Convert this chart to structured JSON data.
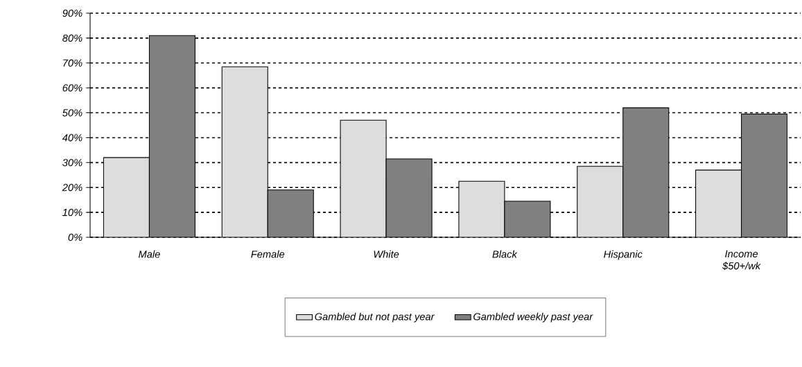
{
  "chart_data": {
    "type": "bar",
    "categories": [
      "Male",
      "Female",
      "White",
      "Black",
      "Hispanic",
      "Income $50+/wk"
    ],
    "series": [
      {
        "name": "Gambled but not past year",
        "color": "#dddddd",
        "values": [
          32,
          68.5,
          47,
          22.5,
          28.5,
          27
        ]
      },
      {
        "name": "Gambled weekly past year",
        "color": "#808080",
        "values": [
          81,
          19,
          31.5,
          14.5,
          52,
          49.5
        ]
      }
    ],
    "ylim": [
      0,
      90
    ],
    "yticks": [
      {
        "value": 0,
        "label": "0%"
      },
      {
        "value": 10,
        "label": "10%"
      },
      {
        "value": 20,
        "label": "20%"
      },
      {
        "value": 30,
        "label": "30%"
      },
      {
        "value": 40,
        "label": "40%"
      },
      {
        "value": 50,
        "label": "50%"
      },
      {
        "value": 60,
        "label": "60%"
      },
      {
        "value": 70,
        "label": "70%"
      },
      {
        "value": 80,
        "label": "80%"
      },
      {
        "value": 90,
        "label": "90%"
      }
    ],
    "grid": "y",
    "legend": "bottom"
  }
}
